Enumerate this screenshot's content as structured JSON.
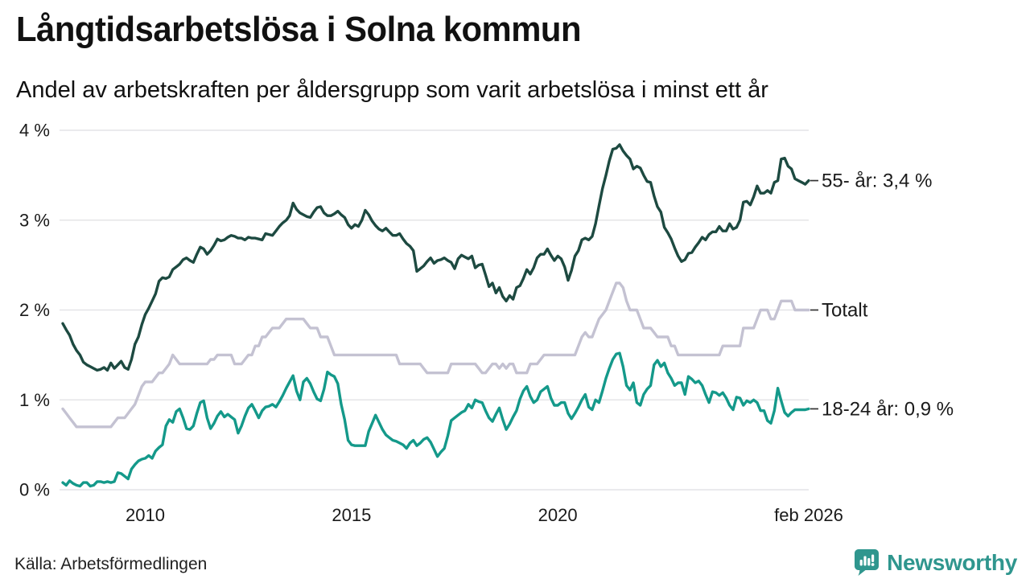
{
  "title": "Långtidsarbetslösa i Solna kommun",
  "subtitle": "Andel av arbetskraften per åldersgrupp som varit arbetslösa i minst ett år",
  "source": "Källa: Arbetsförmedlingen",
  "branding": {
    "name": "Newsworthy",
    "icon": "newsworthy-bubble-chart-icon",
    "color": "#2f968e"
  },
  "chart_data": {
    "type": "line",
    "unit": "%",
    "x_start": "2008-01",
    "x_end": "2026-02",
    "frequency": "monthly",
    "ylim": [
      0,
      4
    ],
    "grid": "horizontal",
    "grid_color": "#e4e4e7",
    "axis_text_color": "#1a1a1a",
    "y_ticks": [
      "0 %",
      "1 %",
      "2 %",
      "3 %",
      "4 %"
    ],
    "x_ticks": [
      {
        "label": "2010",
        "month_index": 24
      },
      {
        "label": "2015",
        "month_index": 84
      },
      {
        "label": "2020",
        "month_index": 144
      },
      {
        "label": "feb 2026",
        "month_index": 217
      }
    ],
    "series": [
      {
        "id": "55-ar",
        "name": "55- år",
        "label": "55- år: 3,4 %",
        "last_value": 3.4,
        "color": "#1d4a41",
        "values": [
          1.85,
          1.78,
          1.72,
          1.62,
          1.55,
          1.5,
          1.42,
          1.39,
          1.37,
          1.35,
          1.33,
          1.34,
          1.36,
          1.33,
          1.41,
          1.35,
          1.39,
          1.43,
          1.36,
          1.34,
          1.45,
          1.62,
          1.7,
          1.84,
          1.95,
          2.02,
          2.1,
          2.18,
          2.32,
          2.36,
          2.35,
          2.37,
          2.45,
          2.48,
          2.51,
          2.56,
          2.58,
          2.55,
          2.53,
          2.62,
          2.7,
          2.68,
          2.62,
          2.66,
          2.72,
          2.79,
          2.77,
          2.78,
          2.81,
          2.83,
          2.82,
          2.8,
          2.8,
          2.78,
          2.81,
          2.8,
          2.8,
          2.79,
          2.78,
          2.85,
          2.84,
          2.83,
          2.88,
          2.93,
          2.97,
          3.0,
          3.05,
          3.19,
          3.12,
          3.08,
          3.06,
          3.04,
          3.03,
          3.09,
          3.14,
          3.15,
          3.08,
          3.05,
          3.05,
          3.07,
          3.1,
          3.06,
          3.03,
          2.95,
          2.91,
          2.95,
          2.93,
          3.0,
          3.11,
          3.06,
          2.99,
          2.94,
          2.9,
          2.88,
          2.91,
          2.87,
          2.83,
          2.83,
          2.85,
          2.79,
          2.74,
          2.71,
          2.66,
          2.43,
          2.46,
          2.49,
          2.54,
          2.58,
          2.52,
          2.55,
          2.56,
          2.58,
          2.55,
          2.53,
          2.46,
          2.57,
          2.61,
          2.59,
          2.57,
          2.6,
          2.47,
          2.5,
          2.51,
          2.39,
          2.26,
          2.3,
          2.19,
          2.25,
          2.15,
          2.1,
          2.16,
          2.12,
          2.25,
          2.27,
          2.35,
          2.45,
          2.4,
          2.47,
          2.58,
          2.62,
          2.62,
          2.68,
          2.61,
          2.55,
          2.6,
          2.57,
          2.48,
          2.33,
          2.44,
          2.6,
          2.66,
          2.78,
          2.8,
          2.78,
          2.82,
          2.96,
          3.16,
          3.35,
          3.5,
          3.66,
          3.79,
          3.8,
          3.84,
          3.77,
          3.72,
          3.68,
          3.57,
          3.6,
          3.58,
          3.5,
          3.43,
          3.42,
          3.27,
          3.15,
          3.09,
          2.92,
          2.86,
          2.79,
          2.69,
          2.6,
          2.54,
          2.56,
          2.63,
          2.64,
          2.7,
          2.75,
          2.81,
          2.78,
          2.84,
          2.87,
          2.87,
          2.93,
          2.88,
          2.88,
          2.96,
          2.9,
          2.92,
          3.0,
          3.2,
          3.21,
          3.17,
          3.26,
          3.38,
          3.3,
          3.3,
          3.33,
          3.3,
          3.42,
          3.44,
          3.68,
          3.69,
          3.6,
          3.57,
          3.46,
          3.44,
          3.42,
          3.4,
          3.44
        ]
      },
      {
        "id": "totalt",
        "name": "Totalt",
        "label": "Totalt",
        "last_value": 2.0,
        "color": "#c4c2d2",
        "values": [
          0.9,
          0.85,
          0.8,
          0.75,
          0.7,
          0.7,
          0.7,
          0.7,
          0.7,
          0.7,
          0.7,
          0.7,
          0.7,
          0.7,
          0.7,
          0.75,
          0.8,
          0.8,
          0.8,
          0.85,
          0.9,
          0.95,
          1.05,
          1.15,
          1.2,
          1.2,
          1.2,
          1.25,
          1.3,
          1.3,
          1.35,
          1.4,
          1.5,
          1.45,
          1.4,
          1.4,
          1.4,
          1.4,
          1.4,
          1.4,
          1.4,
          1.4,
          1.4,
          1.45,
          1.45,
          1.5,
          1.5,
          1.5,
          1.5,
          1.5,
          1.4,
          1.4,
          1.4,
          1.45,
          1.5,
          1.5,
          1.6,
          1.6,
          1.7,
          1.7,
          1.75,
          1.8,
          1.8,
          1.8,
          1.85,
          1.9,
          1.9,
          1.9,
          1.9,
          1.9,
          1.9,
          1.85,
          1.8,
          1.8,
          1.8,
          1.7,
          1.7,
          1.7,
          1.6,
          1.5,
          1.5,
          1.5,
          1.5,
          1.5,
          1.5,
          1.5,
          1.5,
          1.5,
          1.5,
          1.5,
          1.5,
          1.5,
          1.5,
          1.5,
          1.5,
          1.5,
          1.5,
          1.5,
          1.4,
          1.4,
          1.4,
          1.4,
          1.4,
          1.4,
          1.4,
          1.35,
          1.3,
          1.3,
          1.3,
          1.3,
          1.3,
          1.3,
          1.3,
          1.4,
          1.4,
          1.4,
          1.4,
          1.4,
          1.4,
          1.4,
          1.4,
          1.35,
          1.3,
          1.3,
          1.35,
          1.4,
          1.4,
          1.35,
          1.4,
          1.35,
          1.4,
          1.4,
          1.3,
          1.3,
          1.3,
          1.3,
          1.4,
          1.4,
          1.4,
          1.45,
          1.5,
          1.5,
          1.5,
          1.5,
          1.5,
          1.5,
          1.5,
          1.5,
          1.5,
          1.5,
          1.6,
          1.7,
          1.75,
          1.7,
          1.7,
          1.8,
          1.9,
          1.95,
          2.0,
          2.1,
          2.2,
          2.3,
          2.3,
          2.25,
          2.1,
          2.0,
          2.0,
          2.0,
          1.9,
          1.8,
          1.8,
          1.8,
          1.75,
          1.7,
          1.7,
          1.7,
          1.7,
          1.6,
          1.6,
          1.5,
          1.5,
          1.5,
          1.5,
          1.5,
          1.5,
          1.5,
          1.5,
          1.5,
          1.5,
          1.5,
          1.5,
          1.5,
          1.6,
          1.6,
          1.6,
          1.6,
          1.6,
          1.6,
          1.8,
          1.8,
          1.8,
          1.8,
          1.9,
          2.0,
          2.0,
          2.0,
          1.9,
          1.9,
          2.0,
          2.1,
          2.1,
          2.1,
          2.1,
          2.0,
          2.0,
          2.0,
          2.0,
          2.0
        ]
      },
      {
        "id": "18-24-ar",
        "name": "18-24 år",
        "label": "18-24 år: 0,9 %",
        "last_value": 0.9,
        "color": "#14998a",
        "values": [
          0.08,
          0.05,
          0.1,
          0.07,
          0.05,
          0.04,
          0.08,
          0.08,
          0.04,
          0.05,
          0.09,
          0.09,
          0.08,
          0.09,
          0.08,
          0.09,
          0.19,
          0.18,
          0.15,
          0.12,
          0.23,
          0.28,
          0.32,
          0.34,
          0.35,
          0.38,
          0.35,
          0.43,
          0.47,
          0.5,
          0.71,
          0.78,
          0.75,
          0.87,
          0.9,
          0.8,
          0.68,
          0.67,
          0.71,
          0.85,
          0.97,
          0.99,
          0.8,
          0.68,
          0.74,
          0.82,
          0.87,
          0.81,
          0.84,
          0.81,
          0.78,
          0.63,
          0.71,
          0.82,
          0.91,
          0.95,
          0.88,
          0.8,
          0.88,
          0.92,
          0.93,
          0.95,
          0.92,
          0.98,
          1.05,
          1.13,
          1.2,
          1.27,
          1.1,
          1.0,
          1.2,
          1.24,
          1.18,
          1.09,
          1.01,
          0.99,
          1.12,
          1.31,
          1.28,
          1.26,
          1.18,
          0.95,
          0.78,
          0.55,
          0.5,
          0.49,
          0.49,
          0.49,
          0.49,
          0.65,
          0.74,
          0.83,
          0.75,
          0.67,
          0.61,
          0.58,
          0.55,
          0.54,
          0.52,
          0.5,
          0.46,
          0.52,
          0.55,
          0.49,
          0.52,
          0.56,
          0.58,
          0.53,
          0.45,
          0.37,
          0.42,
          0.46,
          0.6,
          0.77,
          0.8,
          0.83,
          0.86,
          0.88,
          0.95,
          0.91,
          1.0,
          0.98,
          0.97,
          0.88,
          0.8,
          0.76,
          0.84,
          0.91,
          0.78,
          0.67,
          0.73,
          0.81,
          0.88,
          1.01,
          1.1,
          1.15,
          1.04,
          0.97,
          1.0,
          1.09,
          1.12,
          1.15,
          1.02,
          0.94,
          0.94,
          0.97,
          0.97,
          0.85,
          0.79,
          0.85,
          0.92,
          1.0,
          1.06,
          0.92,
          0.89,
          1.0,
          0.97,
          1.1,
          1.24,
          1.35,
          1.45,
          1.51,
          1.52,
          1.37,
          1.16,
          1.11,
          1.19,
          0.97,
          0.94,
          1.06,
          1.12,
          1.16,
          1.39,
          1.44,
          1.37,
          1.41,
          1.3,
          1.24,
          1.16,
          1.19,
          1.19,
          1.06,
          1.26,
          1.23,
          1.19,
          1.21,
          1.16,
          1.06,
          0.97,
          1.09,
          1.08,
          1.05,
          1.08,
          1.02,
          0.94,
          0.89,
          1.03,
          1.02,
          0.94,
          0.99,
          0.97,
          1.0,
          0.97,
          0.88,
          0.88,
          0.77,
          0.74,
          0.88,
          1.13,
          0.99,
          0.86,
          0.82,
          0.86,
          0.89,
          0.89,
          0.89,
          0.89,
          0.9
        ]
      }
    ]
  }
}
